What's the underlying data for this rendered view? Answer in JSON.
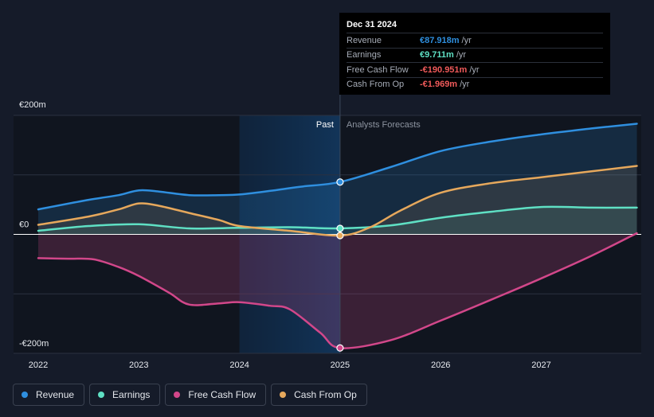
{
  "chart_data": {
    "type": "line",
    "x_axis": {
      "min": 2021.9,
      "max": 2027.95,
      "ticks": [
        2022,
        2023,
        2024,
        2025,
        2026,
        2027
      ],
      "tick_labels": [
        "2022",
        "2023",
        "2024",
        "2025",
        "2026",
        "2027"
      ]
    },
    "y_axis": {
      "min": -200,
      "max": 200,
      "unit": "€m",
      "labels": [
        {
          "value": 200,
          "text": "€200m"
        },
        {
          "value": 0,
          "text": "€0"
        },
        {
          "value": -200,
          "text": "-€200m"
        }
      ]
    },
    "divider_x": 2025.0,
    "shade_start_x": 2024.0,
    "past_label": "Past",
    "forecast_label": "Analysts Forecasts",
    "series": [
      {
        "name": "Revenue",
        "color": "#2f8fdf",
        "points": [
          [
            2022,
            42
          ],
          [
            2022.5,
            58
          ],
          [
            2022.8,
            66
          ],
          [
            2023,
            74
          ],
          [
            2023.2,
            72
          ],
          [
            2023.5,
            66
          ],
          [
            2023.8,
            66
          ],
          [
            2024,
            67
          ],
          [
            2024.3,
            73
          ],
          [
            2024.6,
            80
          ],
          [
            2025,
            88
          ],
          [
            2025.5,
            113
          ],
          [
            2026,
            140
          ],
          [
            2026.5,
            156
          ],
          [
            2027,
            168
          ],
          [
            2027.5,
            178
          ],
          [
            2027.95,
            186
          ]
        ]
      },
      {
        "name": "Earnings",
        "color": "#5fe0c4",
        "points": [
          [
            2022,
            6
          ],
          [
            2022.5,
            14
          ],
          [
            2023,
            17
          ],
          [
            2023.5,
            10
          ],
          [
            2024,
            11
          ],
          [
            2024.5,
            12
          ],
          [
            2025,
            10
          ],
          [
            2025.5,
            15
          ],
          [
            2026,
            28
          ],
          [
            2026.5,
            38
          ],
          [
            2027,
            46
          ],
          [
            2027.5,
            45
          ],
          [
            2027.95,
            45
          ]
        ]
      },
      {
        "name": "Free Cash Flow",
        "color": "#d2478a",
        "points": [
          [
            2022,
            -40
          ],
          [
            2022.3,
            -41
          ],
          [
            2022.55,
            -42
          ],
          [
            2022.8,
            -55
          ],
          [
            2023,
            -70
          ],
          [
            2023.3,
            -98
          ],
          [
            2023.5,
            -118
          ],
          [
            2023.8,
            -116
          ],
          [
            2024,
            -114
          ],
          [
            2024.3,
            -120
          ],
          [
            2024.5,
            -126
          ],
          [
            2024.8,
            -165
          ],
          [
            2025,
            -191
          ],
          [
            2025.5,
            -178
          ],
          [
            2026,
            -145
          ],
          [
            2026.5,
            -110
          ],
          [
            2027,
            -74
          ],
          [
            2027.5,
            -36
          ],
          [
            2027.95,
            2
          ]
        ]
      },
      {
        "name": "Cash From Op",
        "color": "#e6a85c",
        "points": [
          [
            2022,
            16
          ],
          [
            2022.5,
            30
          ],
          [
            2022.8,
            42
          ],
          [
            2023,
            52
          ],
          [
            2023.2,
            48
          ],
          [
            2023.5,
            36
          ],
          [
            2023.8,
            24
          ],
          [
            2024,
            14
          ],
          [
            2024.5,
            6
          ],
          [
            2025,
            -2
          ],
          [
            2025.3,
            12
          ],
          [
            2025.6,
            40
          ],
          [
            2026,
            70
          ],
          [
            2026.5,
            86
          ],
          [
            2027,
            96
          ],
          [
            2027.5,
            106
          ],
          [
            2027.95,
            115
          ]
        ]
      }
    ]
  },
  "tooltip": {
    "date": "Dec 31 2024",
    "rows": [
      {
        "label": "Revenue",
        "value": "€87.918m",
        "unit": "/yr",
        "color": "#2f8fdf"
      },
      {
        "label": "Earnings",
        "value": "€9.711m",
        "unit": "/yr",
        "color": "#5fe0c4"
      },
      {
        "label": "Free Cash Flow",
        "value": "-€190.951m",
        "unit": "/yr",
        "color": "#f05a5a"
      },
      {
        "label": "Cash From Op",
        "value": "-€1.969m",
        "unit": "/yr",
        "color": "#f05a5a"
      }
    ]
  },
  "legend": [
    {
      "label": "Revenue",
      "color": "#2f8fdf"
    },
    {
      "label": "Earnings",
      "color": "#5fe0c4"
    },
    {
      "label": "Free Cash Flow",
      "color": "#d2478a"
    },
    {
      "label": "Cash From Op",
      "color": "#e6a85c"
    }
  ]
}
